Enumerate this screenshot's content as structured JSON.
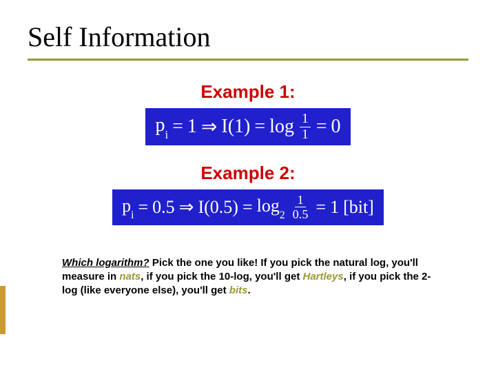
{
  "title": "Self Information",
  "colors": {
    "title_text": "#000000",
    "underline": "#999933",
    "example_label": "#cc0000",
    "equation_bg": "#2020cc",
    "equation_text": "#ffffff",
    "highlight_green": "#999933",
    "side_accent": "#cc9933",
    "background": "#ffffff"
  },
  "typography": {
    "title_family": "Georgia, Times New Roman, serif",
    "title_size_pt": 30,
    "body_family": "Arial, sans-serif",
    "example_label_size_pt": 20,
    "equation_family": "Times New Roman, serif",
    "equation_size_pt": 21,
    "footnote_size_pt": 11
  },
  "examples": [
    {
      "label": "Example 1:",
      "equation": {
        "lhs_var": "p",
        "lhs_sub": "i",
        "lhs_val": "1",
        "func": "I",
        "arg": "1",
        "log_label": "log",
        "log_sub": "",
        "frac_num": "1",
        "frac_den": "1",
        "rhs": "0",
        "unit": ""
      }
    },
    {
      "label": "Example 2:",
      "equation": {
        "lhs_var": "p",
        "lhs_sub": "i",
        "lhs_val": "0.5",
        "func": "I",
        "arg": "0.5",
        "log_label": "log",
        "log_sub": "2",
        "frac_num": "1",
        "frac_den": "0.5",
        "rhs": "1",
        "unit": "[bit]"
      }
    }
  ],
  "footnote": {
    "q": "Which logarithm?",
    "t1": " Pick the one you like! If you pick the natural log, you'll measure in ",
    "h1": "nats",
    "t2": ", if you pick the 10-log, you'll get ",
    "h2": "Hartleys",
    "t3": ", if you pick the 2-log (like everyone else), you'll get ",
    "h3": "bits",
    "t4": "."
  }
}
